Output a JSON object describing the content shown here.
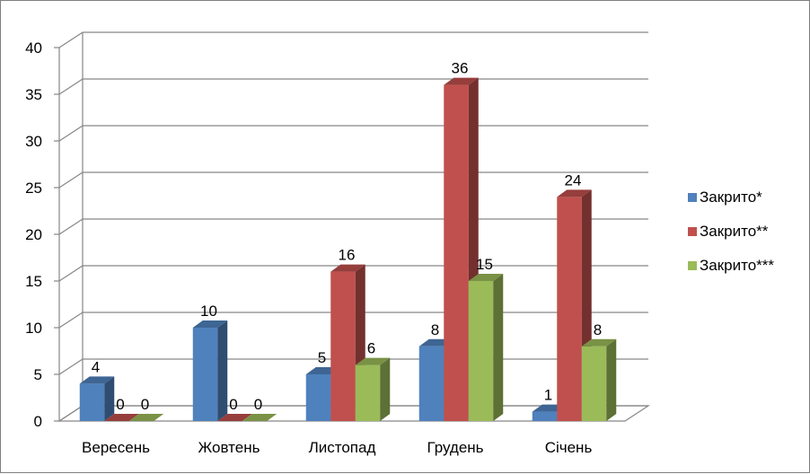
{
  "chart_data": {
    "type": "bar",
    "style": "3d-clustered-column",
    "categories": [
      "Вересень",
      "Жовтень",
      "Листопад",
      "Грудень",
      "Січень"
    ],
    "series": [
      {
        "name": "Закрито*",
        "values": [
          4,
          10,
          5,
          8,
          1
        ],
        "color": "#4f81bd"
      },
      {
        "name": "Закрито**",
        "values": [
          0,
          0,
          16,
          36,
          24
        ],
        "color": "#c0504d"
      },
      {
        "name": "Закрито***",
        "values": [
          0,
          0,
          6,
          15,
          8
        ],
        "color": "#9bbb59"
      }
    ],
    "ylim": [
      0,
      40
    ],
    "yticks": [
      0,
      5,
      10,
      15,
      20,
      25,
      30,
      35,
      40
    ],
    "title": "",
    "xlabel": "",
    "ylabel": "",
    "grid": true,
    "legend": "right",
    "data_labels": true
  }
}
